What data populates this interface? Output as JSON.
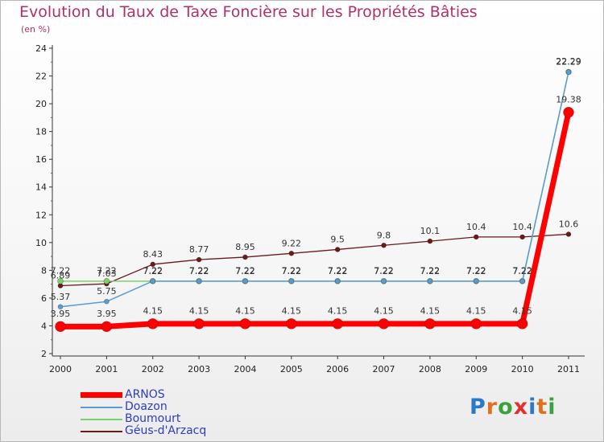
{
  "chart_data": {
    "type": "line",
    "title": "Evolution du Taux de Taxe Foncière sur les Propriétés Bâties",
    "unit_label": "(en %)",
    "xlabel": "",
    "ylabel": "",
    "x": [
      "2000",
      "2001",
      "2002",
      "2003",
      "2004",
      "2005",
      "2006",
      "2007",
      "2008",
      "2009",
      "2010",
      "2011"
    ],
    "ylim": [
      2,
      24
    ],
    "yticks": [
      2,
      4,
      6,
      8,
      10,
      12,
      14,
      16,
      18,
      20,
      22,
      24
    ],
    "grid": false,
    "legend_position": "bottom-left",
    "series": [
      {
        "name": "Géus-d'Arzacq",
        "color": "#6b1a1a",
        "values": [
          6.89,
          7.03,
          8.43,
          8.77,
          8.95,
          9.22,
          9.5,
          9.8,
          10.1,
          10.4,
          10.4,
          10.6
        ],
        "labels": [
          "6.89",
          "7.03",
          "8.43",
          "8.77",
          "8.95",
          "9.22",
          "9.5",
          "9.8",
          "10.1",
          "10.4",
          "10.4",
          "10.6"
        ]
      },
      {
        "name": "Boumourt",
        "color": "#7ad16a",
        "values": [
          7.22,
          7.22,
          7.22,
          7.22,
          7.22,
          7.22,
          7.22,
          7.22,
          7.22,
          7.22,
          7.22,
          22.29
        ],
        "labels": [
          "7.22",
          "7.22",
          "7.22",
          "7.22",
          "7.22",
          "7.22",
          "7.22",
          "7.22",
          "7.22",
          "7.22",
          "7.22",
          "22.29"
        ]
      },
      {
        "name": "Doazon",
        "color": "#5b9bd5",
        "values": [
          5.37,
          5.75,
          7.22,
          7.22,
          7.22,
          7.22,
          7.22,
          7.22,
          7.22,
          7.22,
          7.22,
          22.29
        ],
        "labels": [
          "5.37",
          "5.75",
          "7.22",
          "7.22",
          "7.22",
          "7.22",
          "7.22",
          "7.22",
          "7.22",
          "7.22",
          "7.22",
          "22.29"
        ]
      },
      {
        "name": "ARNOS",
        "color": "#ff0000",
        "values": [
          3.95,
          3.95,
          4.15,
          4.15,
          4.15,
          4.15,
          4.15,
          4.15,
          4.15,
          4.15,
          4.15,
          19.38
        ],
        "labels": [
          "3.95",
          "3.95",
          "4.15",
          "4.15",
          "4.15",
          "4.15",
          "4.15",
          "4.15",
          "4.15",
          "4.15",
          "4.15",
          "19.38"
        ]
      }
    ],
    "legend": [
      {
        "name": "ARNOS",
        "color": "#ff0000",
        "text_color": "#2c3cc4"
      },
      {
        "name": "Doazon",
        "color": "#5b9bd5",
        "text_color": "#2c3cc4"
      },
      {
        "name": "Boumourt",
        "color": "#7ad16a",
        "text_color": "#2c3cc4"
      },
      {
        "name": "Géus-d'Arzacq",
        "color": "#6b1a1a",
        "text_color": "#2c3cc4"
      }
    ],
    "title_color": "#b0306a"
  },
  "logo": {
    "text": "Proxiti",
    "letter_colors": [
      "#2a78c8",
      "#e07020",
      "#3aa040",
      "#e03030",
      "#2a78c8",
      "#e07020",
      "#3aa040"
    ]
  }
}
